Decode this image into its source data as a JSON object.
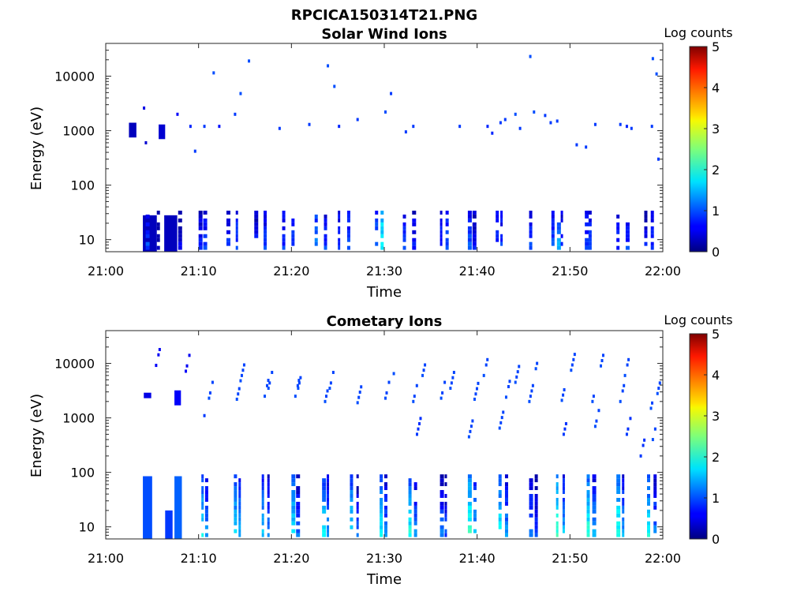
{
  "page": {
    "title": "RPCICA150314T21.PNG"
  },
  "chart_data": [
    {
      "type": "heatmap",
      "title": "Solar Wind Ions",
      "xlabel": "Time",
      "ylabel": "Energy (eV)",
      "xlim": [
        "21:00",
        "22:00"
      ],
      "x_ticks": [
        "21:00",
        "21:10",
        "21:20",
        "21:30",
        "21:40",
        "21:50",
        "22:00"
      ],
      "y_scale": "log",
      "ylim": [
        6,
        40000
      ],
      "y_ticks": [
        10,
        100,
        1000,
        10000
      ],
      "y_tick_labels": [
        "10",
        "100",
        "1000",
        "10000"
      ],
      "colorbar": {
        "label": "Log counts",
        "min": 0,
        "max": 5,
        "ticks": [
          "0",
          "1",
          "2",
          "3",
          "4",
          "5"
        ]
      },
      "grid": false,
      "notable_features": [
        {
          "t_min": 4.0,
          "t_max": 5.5,
          "e_min": 6,
          "e_max": 28,
          "log_counts": 0.3
        },
        {
          "t_min": 6.3,
          "t_max": 7.7,
          "e_min": 6,
          "e_max": 28,
          "log_counts": 0.3
        },
        {
          "t_min": 2.5,
          "t_max": 3.3,
          "e_min": 750,
          "e_max": 1400,
          "log_counts": 0.3
        },
        {
          "t_min": 5.7,
          "t_max": 6.4,
          "e_min": 700,
          "e_max": 1300,
          "log_counts": 0.4
        }
      ],
      "spectrogram_cycle_min": 3.0,
      "high_energy_cells": [
        [
          4.0,
          2600,
          0.5
        ],
        [
          4.2,
          600,
          0.4
        ],
        [
          7.6,
          2000,
          0.6
        ],
        [
          9.0,
          1200,
          0.8
        ],
        [
          9.5,
          420,
          0.9
        ],
        [
          10.5,
          1200,
          0.9
        ],
        [
          11.5,
          11500,
          1.0
        ],
        [
          12.1,
          1200,
          0.7
        ],
        [
          13.8,
          2000,
          0.9
        ],
        [
          14.4,
          4800,
          1.0
        ],
        [
          15.3,
          19000,
          1.0
        ],
        [
          18.6,
          1100,
          0.9
        ],
        [
          21.8,
          1300,
          0.9
        ],
        [
          23.8,
          15500,
          1.0
        ],
        [
          24.5,
          6500,
          1.0
        ],
        [
          25.0,
          1200,
          0.8
        ],
        [
          27.0,
          1600,
          0.9
        ],
        [
          30.0,
          2200,
          1.0
        ],
        [
          30.6,
          4800,
          0.9
        ],
        [
          32.2,
          950,
          0.9
        ],
        [
          33.0,
          1200,
          0.9
        ],
        [
          38.0,
          1200,
          0.9
        ],
        [
          41.0,
          1200,
          0.8
        ],
        [
          41.5,
          900,
          0.8
        ],
        [
          42.4,
          1400,
          0.9
        ],
        [
          42.9,
          1600,
          0.9
        ],
        [
          44.0,
          2000,
          1.0
        ],
        [
          44.5,
          1100,
          0.9
        ],
        [
          45.6,
          23000,
          1.0
        ],
        [
          46.0,
          2200,
          1.0
        ],
        [
          47.2,
          1900,
          0.9
        ],
        [
          47.8,
          1400,
          0.9
        ],
        [
          48.5,
          1500,
          0.9
        ],
        [
          50.6,
          550,
          0.9
        ],
        [
          51.6,
          500,
          0.9
        ],
        [
          52.6,
          1300,
          0.9
        ],
        [
          55.3,
          1300,
          0.9
        ],
        [
          56.0,
          1200,
          0.8
        ],
        [
          56.5,
          1100,
          0.9
        ],
        [
          58.7,
          1200,
          0.9
        ],
        [
          58.8,
          21000,
          1.0
        ],
        [
          59.2,
          11000,
          1.0
        ],
        [
          59.4,
          300,
          0.9
        ]
      ],
      "low_energy_columns": [
        [
          4.3,
          1.0
        ],
        [
          5.5,
          0.4
        ],
        [
          7.8,
          0.5
        ],
        [
          10.0,
          0.7
        ],
        [
          10.5,
          0.9
        ],
        [
          13.0,
          0.9
        ],
        [
          14.0,
          1.0
        ],
        [
          16.0,
          0.7
        ],
        [
          17.0,
          0.9
        ],
        [
          19.0,
          0.9
        ],
        [
          20.0,
          1.0
        ],
        [
          22.5,
          1.2
        ],
        [
          23.5,
          0.9
        ],
        [
          25.0,
          0.9
        ],
        [
          26.0,
          1.0
        ],
        [
          29.0,
          1.2
        ],
        [
          29.6,
          1.9
        ],
        [
          32.0,
          0.9
        ],
        [
          33.0,
          0.8
        ],
        [
          36.0,
          0.9
        ],
        [
          36.6,
          1.1
        ],
        [
          39.0,
          1.0
        ],
        [
          39.5,
          0.7
        ],
        [
          42.0,
          0.9
        ],
        [
          42.5,
          0.9
        ],
        [
          45.6,
          0.9
        ],
        [
          48.0,
          1.0
        ],
        [
          48.6,
          1.4
        ],
        [
          49.0,
          0.9
        ],
        [
          51.6,
          1.0
        ],
        [
          52.0,
          0.9
        ],
        [
          55.0,
          0.9
        ],
        [
          56.0,
          0.9
        ],
        [
          58.0,
          0.7
        ],
        [
          58.7,
          0.9
        ]
      ]
    },
    {
      "type": "heatmap",
      "title": "Cometary Ions",
      "xlabel": "Time",
      "ylabel": "Energy (eV)",
      "xlim": [
        "21:00",
        "22:00"
      ],
      "x_ticks": [
        "21:00",
        "21:10",
        "21:20",
        "21:30",
        "21:40",
        "21:50",
        "22:00"
      ],
      "y_scale": "log",
      "ylim": [
        6,
        40000
      ],
      "y_ticks": [
        10,
        100,
        1000,
        10000
      ],
      "y_tick_labels": [
        "10",
        "100",
        "1000",
        "10000"
      ],
      "colorbar": {
        "label": "Log counts",
        "min": 0,
        "max": 5,
        "ticks": [
          "0",
          "1",
          "2",
          "3",
          "4",
          "5"
        ]
      },
      "grid": false,
      "notable_features": [
        {
          "t_min": 4.0,
          "t_max": 5.0,
          "e_min": 6,
          "e_max": 85,
          "log_counts": 1.0
        },
        {
          "t_min": 6.4,
          "t_max": 7.2,
          "e_min": 6,
          "e_max": 20,
          "log_counts": 0.9
        },
        {
          "t_min": 7.4,
          "t_max": 8.2,
          "e_min": 6,
          "e_max": 85,
          "log_counts": 1.1
        },
        {
          "t_min": 4.1,
          "t_max": 4.9,
          "e_min": 2300,
          "e_max": 2900,
          "log_counts": 0.5
        },
        {
          "t_min": 7.4,
          "t_max": 8.1,
          "e_min": 1700,
          "e_max": 3200,
          "log_counts": 0.6
        }
      ],
      "spectrogram_cycle_min": 3.2,
      "high_energy_cells": [
        [
          5.3,
          9200,
          0.6
        ],
        [
          8.5,
          7200,
          0.6
        ],
        [
          10.5,
          1100,
          0.9
        ],
        [
          11.0,
          2300,
          1.0
        ],
        [
          14.0,
          2200,
          1.0
        ],
        [
          14.4,
          4800,
          1.0
        ],
        [
          17.0,
          2500,
          1.0
        ],
        [
          17.4,
          3500,
          1.0
        ],
        [
          20.3,
          2500,
          1.0
        ],
        [
          20.6,
          3500,
          1.0
        ],
        [
          23.5,
          2000,
          1.0
        ],
        [
          24.0,
          3500,
          1.0
        ],
        [
          27.0,
          1900,
          1.0
        ],
        [
          30.0,
          2300,
          1.0
        ],
        [
          30.9,
          6500,
          1.0
        ],
        [
          33.0,
          2000,
          1.0
        ],
        [
          33.4,
          500,
          0.9
        ],
        [
          34.0,
          6000,
          1.0
        ],
        [
          36.0,
          2300,
          1.0
        ],
        [
          37.0,
          3500,
          1.0
        ],
        [
          39.0,
          450,
          1.0
        ],
        [
          39.6,
          2200,
          1.0
        ],
        [
          40.6,
          6000,
          1.0
        ],
        [
          42.3,
          650,
          1.0
        ],
        [
          43.0,
          2400,
          1.0
        ],
        [
          44.0,
          4500,
          1.0
        ],
        [
          45.5,
          2000,
          1.0
        ],
        [
          46.2,
          8000,
          1.0
        ],
        [
          49.0,
          2100,
          1.0
        ],
        [
          49.2,
          500,
          0.9
        ],
        [
          50.0,
          7500,
          1.0
        ],
        [
          52.3,
          2000,
          1.0
        ],
        [
          52.6,
          700,
          1.0
        ],
        [
          53.2,
          9000,
          1.0
        ],
        [
          55.3,
          2000,
          1.0
        ],
        [
          55.8,
          6000,
          1.0
        ],
        [
          56.0,
          500,
          0.9
        ],
        [
          57.5,
          200,
          0.9
        ],
        [
          58.6,
          1500,
          1.0
        ],
        [
          58.8,
          400,
          1.0
        ],
        [
          59.3,
          2800,
          1.0
        ]
      ],
      "low_energy_columns": [
        [
          10.3,
          1.9
        ],
        [
          10.7,
          1.4
        ],
        [
          13.8,
          1.8
        ],
        [
          14.3,
          1.6
        ],
        [
          16.8,
          1.7
        ],
        [
          17.4,
          1.3
        ],
        [
          20.0,
          1.9
        ],
        [
          20.5,
          1.2
        ],
        [
          23.3,
          1.9
        ],
        [
          23.8,
          1.4
        ],
        [
          26.3,
          1.9
        ],
        [
          27.0,
          1.1
        ],
        [
          29.5,
          1.9
        ],
        [
          30.0,
          1.3
        ],
        [
          32.6,
          2.0
        ],
        [
          33.2,
          1.3
        ],
        [
          36.0,
          1.2
        ],
        [
          36.5,
          1.0
        ],
        [
          39.0,
          2.2
        ],
        [
          39.6,
          1.6
        ],
        [
          42.3,
          2.0
        ],
        [
          43.0,
          1.4
        ],
        [
          45.6,
          1.3
        ],
        [
          46.2,
          1.0
        ],
        [
          48.5,
          2.2
        ],
        [
          49.2,
          1.6
        ],
        [
          51.8,
          2.1
        ],
        [
          52.4,
          1.5
        ],
        [
          55.0,
          2.1
        ],
        [
          55.6,
          1.5
        ],
        [
          58.3,
          1.9
        ],
        [
          59.0,
          1.3
        ]
      ]
    }
  ]
}
